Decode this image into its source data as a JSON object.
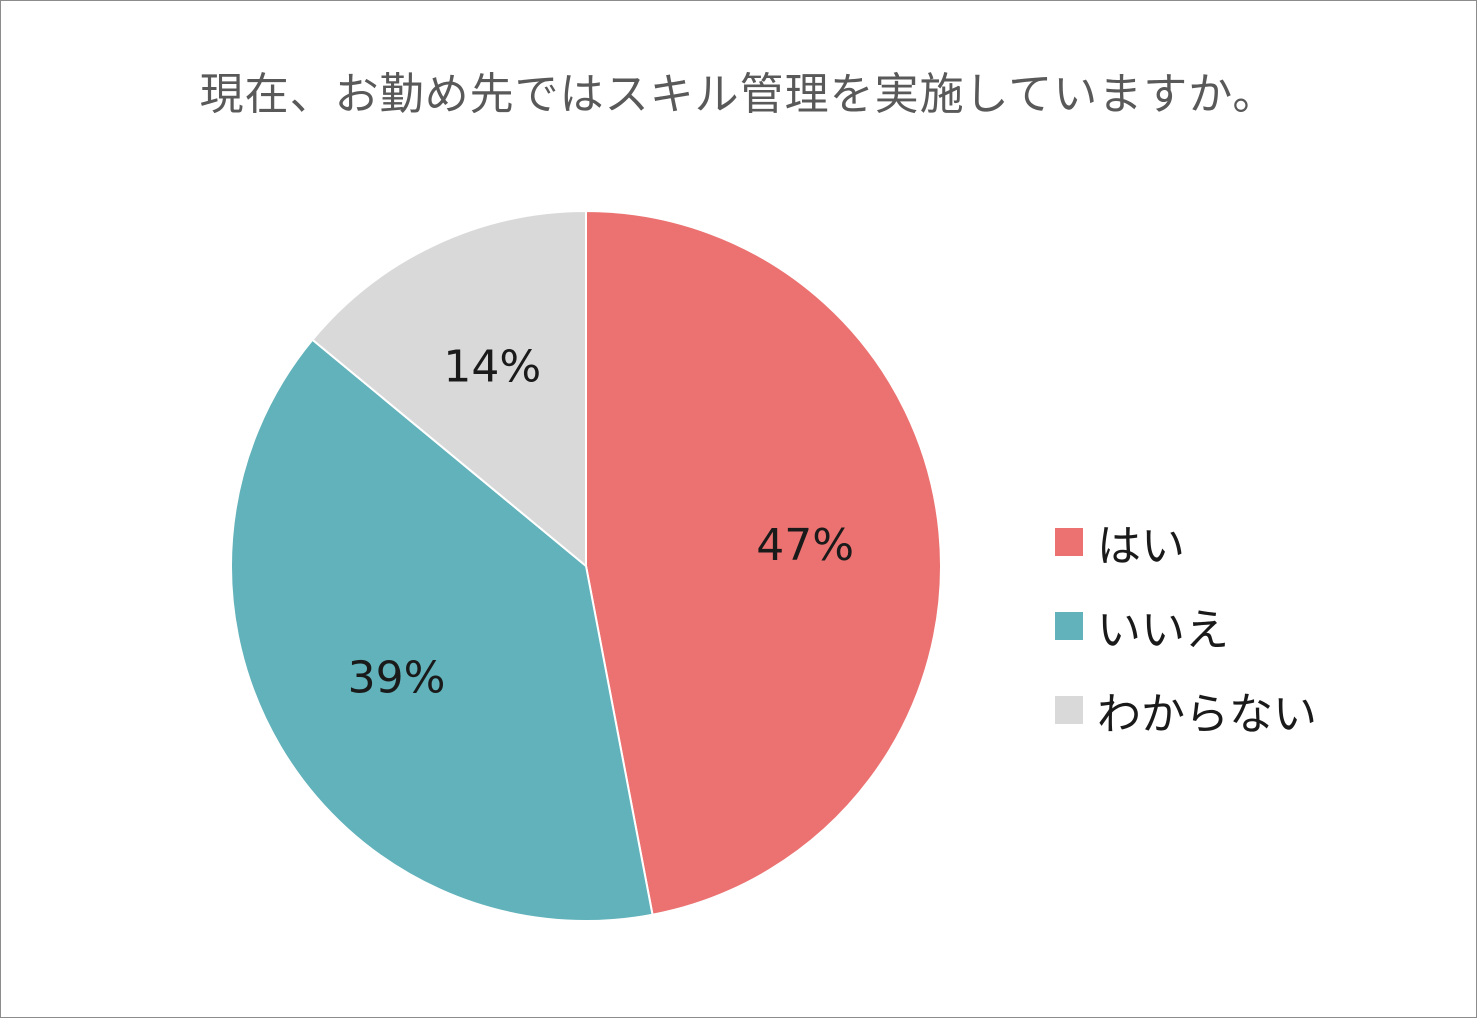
{
  "chart_data": {
    "type": "pie",
    "title": "現在、お勤め先ではスキル管理を実施していますか。",
    "categories": [
      "はい",
      "いいえ",
      "わからない"
    ],
    "values": [
      47,
      39,
      14
    ],
    "labels": [
      "47%",
      "39%",
      "14%"
    ],
    "colors": [
      "#eb7271",
      "#61b2ba",
      "#d9d9d9"
    ],
    "legend_position": "right",
    "start_angle": "12 o'clock",
    "direction": "clockwise"
  }
}
